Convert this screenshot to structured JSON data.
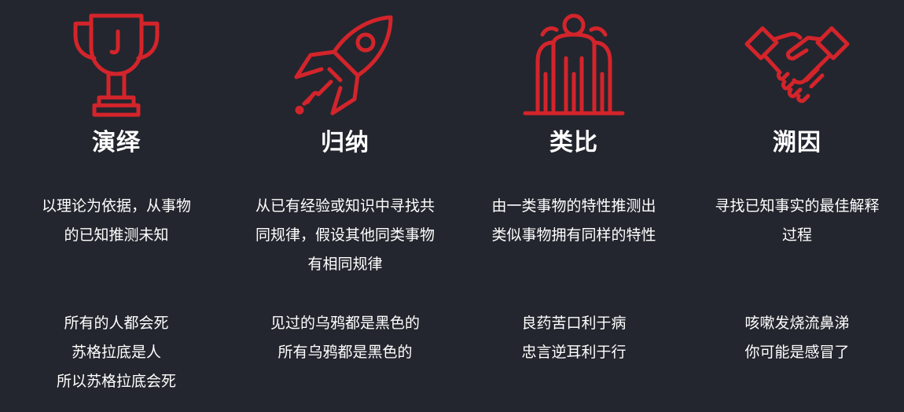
{
  "accent_color": "#d4242b",
  "text_color": "#ffffff",
  "background_color": "#23262e",
  "columns": [
    {
      "icon": "trophy-icon",
      "title": "演绎",
      "description": [
        "以理论为依据，从事物",
        "的已知推测未知"
      ],
      "example": [
        "所有的人都会死",
        "苏格拉底是人",
        "所以苏格拉底会死"
      ]
    },
    {
      "icon": "rocket-icon",
      "title": "归纳",
      "description": [
        "从已有经验或知识中寻找共",
        "同规律，假设其他同类事物",
        "有相同规律"
      ],
      "example": [
        "见过的乌鸦都是黑色的",
        "所有乌鸦都是黑色的"
      ]
    },
    {
      "icon": "group-icon",
      "title": "类比",
      "description": [
        "由一类事物的特性推测出",
        "类似事物拥有同样的特性"
      ],
      "example": [
        "良药苦口利于病",
        "忠言逆耳利于行"
      ]
    },
    {
      "icon": "handshake-icon",
      "title": "溯因",
      "description": [
        "寻找已知事实的最佳解释",
        "过程"
      ],
      "example": [
        "咳嗽发烧流鼻涕",
        "你可能是感冒了"
      ]
    }
  ]
}
